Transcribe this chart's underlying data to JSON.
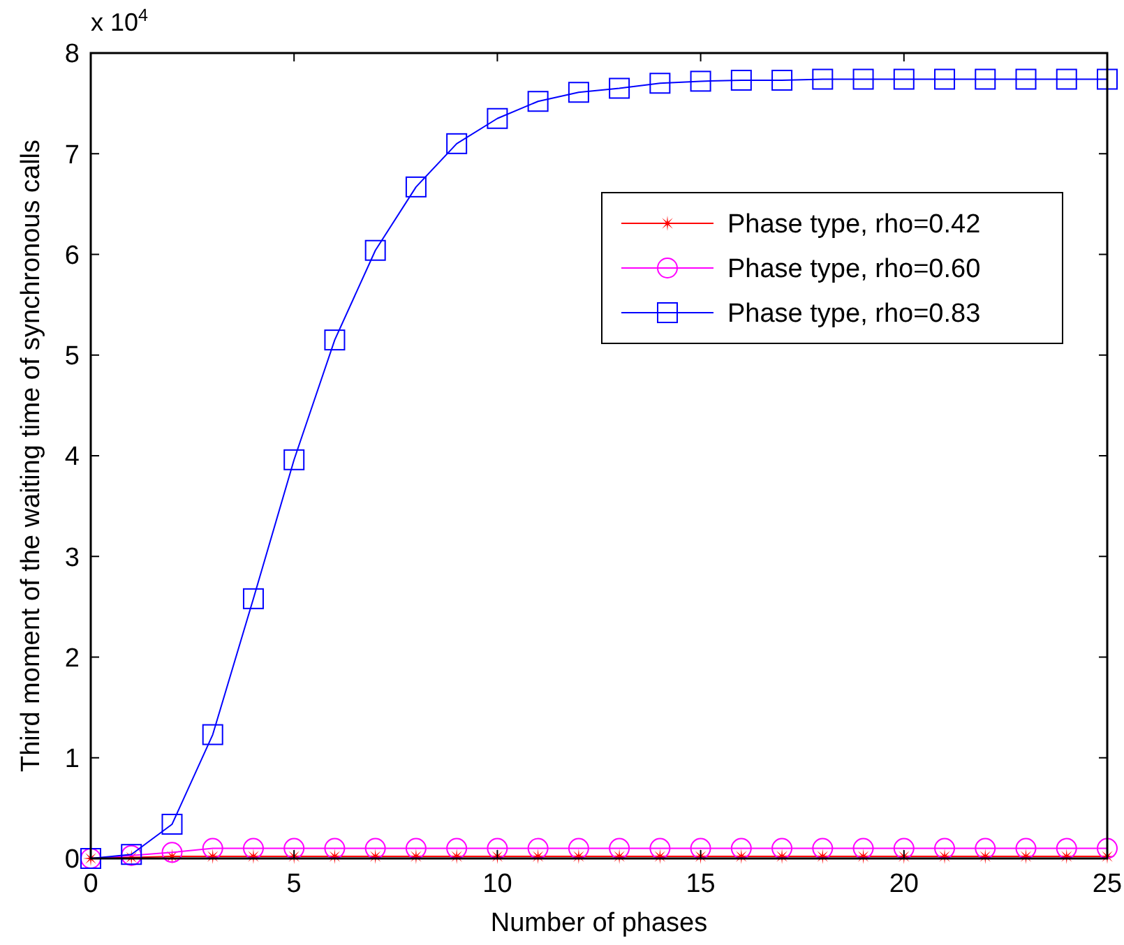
{
  "chart_data": {
    "type": "line",
    "xlabel": "Number of phases",
    "ylabel": "Third moment of the waiting time of synchronous calls",
    "annotations": [
      "x 10$^{4}$"
    ],
    "x": [
      0,
      1,
      2,
      3,
      4,
      5,
      6,
      7,
      8,
      9,
      10,
      11,
      12,
      13,
      14,
      15,
      16,
      17,
      18,
      19,
      20,
      21,
      22,
      23,
      24,
      25
    ],
    "xlim": [
      0,
      25
    ],
    "xticks": [
      0,
      5,
      10,
      15,
      20,
      25
    ],
    "ylim": [
      0,
      8
    ],
    "yticks": [
      0,
      1,
      2,
      3,
      4,
      5,
      6,
      7,
      8
    ],
    "grid": false,
    "legend": "right",
    "line_style": "solid",
    "series": [
      {
        "name": "Phase type, rho=0.42",
        "color": "#ff0000",
        "marker": "star",
        "values": [
          0,
          0.01,
          0.02,
          0.02,
          0.02,
          0.02,
          0.02,
          0.02,
          0.02,
          0.02,
          0.02,
          0.02,
          0.02,
          0.02,
          0.02,
          0.02,
          0.02,
          0.02,
          0.02,
          0.02,
          0.02,
          0.02,
          0.02,
          0.02,
          0.02,
          0.02
        ]
      },
      {
        "name": "Phase type, rho=0.60",
        "color": "#ff00ff",
        "marker": "circle",
        "values": [
          0,
          0.03,
          0.06,
          0.1,
          0.1,
          0.1,
          0.1,
          0.1,
          0.1,
          0.1,
          0.1,
          0.1,
          0.1,
          0.1,
          0.1,
          0.1,
          0.1,
          0.1,
          0.1,
          0.1,
          0.1,
          0.1,
          0.1,
          0.1,
          0.1,
          0.1
        ]
      },
      {
        "name": "Phase type, rho=0.83",
        "color": "#0000ff",
        "marker": "square",
        "values": [
          0,
          0.04,
          0.34,
          1.23,
          2.58,
          3.96,
          5.15,
          6.04,
          6.67,
          7.1,
          7.35,
          7.52,
          7.61,
          7.65,
          7.7,
          7.72,
          7.73,
          7.73,
          7.74,
          7.74,
          7.74,
          7.74,
          7.74,
          7.74,
          7.74,
          7.74
        ]
      }
    ]
  }
}
